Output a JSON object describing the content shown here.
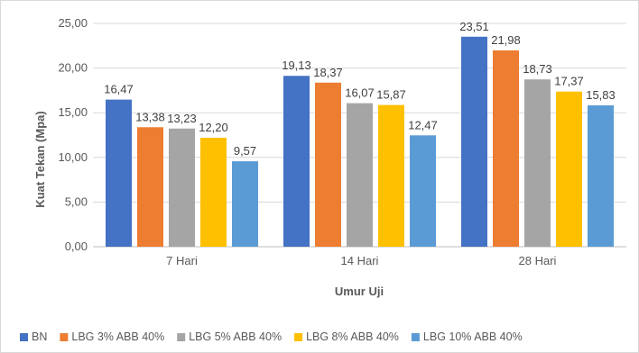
{
  "chart_data": {
    "type": "bar",
    "title": "",
    "xlabel": "Umur Uji",
    "ylabel": "Kuat Tekan (Mpa)",
    "ylim": [
      0,
      25
    ],
    "yticks": [
      "0,00",
      "5,00",
      "10,00",
      "15,00",
      "20,00",
      "25,00"
    ],
    "categories": [
      "7 Hari",
      "14 Hari",
      "28 Hari"
    ],
    "grid": true,
    "legend_position": "bottom",
    "series": [
      {
        "name": "BN",
        "color": "#4472C4",
        "values": [
          16.47,
          19.13,
          23.51
        ],
        "labels": [
          "16,47",
          "19,13",
          "23,51"
        ]
      },
      {
        "name": "LBG 3% ABB 40%",
        "color": "#ED7D31",
        "values": [
          13.38,
          18.37,
          21.98
        ],
        "labels": [
          "13,38",
          "18,37",
          "21,98"
        ]
      },
      {
        "name": "LBG 5% ABB 40%",
        "color": "#A5A5A5",
        "values": [
          13.23,
          16.07,
          18.73
        ],
        "labels": [
          "13,23",
          "16,07",
          "18,73"
        ]
      },
      {
        "name": "LBG 8% ABB 40%",
        "color": "#FFC000",
        "values": [
          12.2,
          15.87,
          17.37
        ],
        "labels": [
          "12,20",
          "15,87",
          "17,37"
        ]
      },
      {
        "name": "LBG 10% ABB 40%",
        "color": "#5B9BD5",
        "values": [
          9.57,
          12.47,
          15.83
        ],
        "labels": [
          "9,57",
          "12,47",
          "15,83"
        ]
      }
    ]
  }
}
